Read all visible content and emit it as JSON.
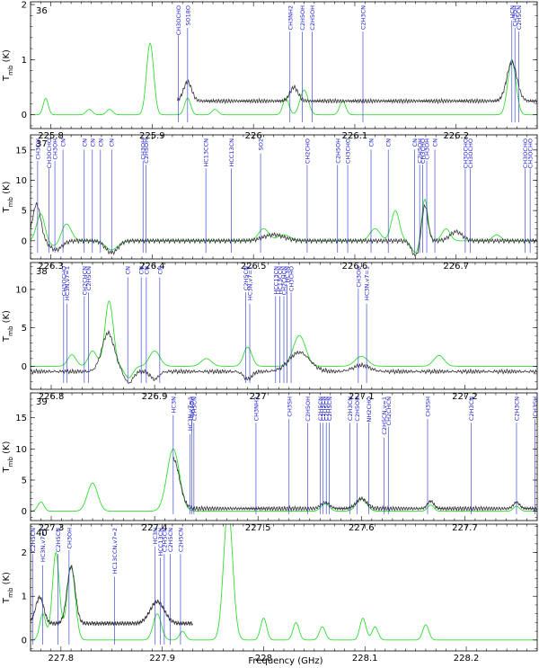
{
  "figure": {
    "xlabel": "Frequency (GHz)",
    "ylabel": "T_mb (K)"
  },
  "colors": {
    "observed": "#333333",
    "model": "#33dd33",
    "line_marker": "#2233cc"
  },
  "chart_data": [
    {
      "type": "line",
      "panel": "36",
      "xlim": [
        225.78,
        226.28
      ],
      "ylim": [
        -0.25,
        2.05
      ],
      "x_ticks": [
        225.8,
        225.9,
        226.0,
        226.1,
        226.2
      ],
      "x_tick_labels": [
        "225.8",
        "225.9",
        "226",
        "226.1",
        "226.2"
      ],
      "y_ticks": [
        0,
        1,
        2
      ],
      "y_tick_labels": [
        "0",
        "1",
        "2"
      ],
      "obs_range": [
        225.925,
        226.28
      ],
      "obs_base": 0.25,
      "obs_peaks": [
        [
          225.935,
          0.35,
          0.004
        ],
        [
          226.04,
          0.25,
          0.004
        ],
        [
          226.255,
          0.7,
          0.005
        ]
      ],
      "model_peaks": [
        [
          225.795,
          0.3,
          0.0025
        ],
        [
          225.838,
          0.1,
          0.003
        ],
        [
          225.858,
          0.1,
          0.003
        ],
        [
          225.898,
          1.3,
          0.0035
        ],
        [
          225.935,
          0.3,
          0.003
        ],
        [
          225.962,
          0.1,
          0.003
        ],
        [
          226.032,
          0.3,
          0.003
        ],
        [
          226.05,
          0.45,
          0.004
        ],
        [
          226.088,
          0.25,
          0.003
        ],
        [
          226.255,
          1.0,
          0.004
        ]
      ],
      "lines": [
        {
          "x": 225.926,
          "label": "CH3OCHO"
        },
        {
          "x": 225.935,
          "label": "SO18O"
        },
        {
          "x": 226.036,
          "label": "CH3NH2"
        },
        {
          "x": 226.048,
          "label": "C2H5OH"
        },
        {
          "x": 226.058,
          "label": "C2H5OH"
        },
        {
          "x": 226.108,
          "label": "C2H3CN"
        },
        {
          "x": 226.255,
          "label": "HCN"
        },
        {
          "x": 226.258,
          "label": "CH3OH"
        },
        {
          "x": 226.262,
          "label": "C2H5CN"
        }
      ]
    },
    {
      "type": "line",
      "panel": "37",
      "xlim": [
        226.28,
        226.78
      ],
      "ylim": [
        -3.0,
        17.5
      ],
      "x_ticks": [
        226.3,
        226.4,
        226.5,
        226.6,
        226.7
      ],
      "x_tick_labels": [
        "226.3",
        "226.4",
        "226.5",
        "226.6",
        "226.7"
      ],
      "y_ticks": [
        0,
        5,
        10,
        15
      ],
      "y_tick_labels": [
        "0",
        "5",
        "10",
        "15"
      ],
      "obs_range": [
        226.28,
        226.78
      ],
      "obs_base": 0.0,
      "obs_peaks": [
        [
          226.286,
          6.0,
          0.004
        ],
        [
          226.305,
          -1.5,
          0.006
        ],
        [
          226.36,
          -2.0,
          0.006
        ],
        [
          226.52,
          1.0,
          0.01
        ],
        [
          226.66,
          -2.5,
          0.004
        ],
        [
          226.669,
          6.0,
          0.003
        ],
        [
          226.7,
          1.5,
          0.006
        ]
      ],
      "model_peaks": [
        [
          226.29,
          4.5,
          0.004
        ],
        [
          226.305,
          -1.0,
          0.006
        ],
        [
          226.315,
          3.0,
          0.005
        ],
        [
          226.36,
          -1.5,
          0.006
        ],
        [
          226.51,
          2.0,
          0.005
        ],
        [
          226.53,
          1.0,
          0.006
        ],
        [
          226.62,
          2.0,
          0.005
        ],
        [
          226.64,
          5.0,
          0.004
        ],
        [
          226.66,
          -2.0,
          0.004
        ],
        [
          226.669,
          7.0,
          0.003
        ],
        [
          226.69,
          2.0,
          0.004
        ],
        [
          226.74,
          1.0,
          0.004
        ]
      ],
      "lines": [
        {
          "x": 226.287,
          "label": "CH3OH"
        },
        {
          "x": 226.298,
          "label": "CH3OCHO"
        },
        {
          "x": 226.304,
          "label": "CH3OH"
        },
        {
          "x": 226.312,
          "label": "CN"
        },
        {
          "x": 226.333,
          "label": "CN"
        },
        {
          "x": 226.341,
          "label": "CN"
        },
        {
          "x": 226.349,
          "label": "CN"
        },
        {
          "x": 226.36,
          "label": "CN"
        },
        {
          "x": 226.391,
          "label": "CH3OH"
        },
        {
          "x": 226.394,
          "label": "C2H5OH"
        },
        {
          "x": 226.453,
          "label": "HC13CCN"
        },
        {
          "x": 226.478,
          "label": "HCC13CN"
        },
        {
          "x": 226.507,
          "label": "SO2"
        },
        {
          "x": 226.553,
          "label": "CH2CHO"
        },
        {
          "x": 226.583,
          "label": "C2H5OH"
        },
        {
          "x": 226.593,
          "label": "CH3CHO"
        },
        {
          "x": 226.616,
          "label": "CN"
        },
        {
          "x": 226.633,
          "label": "CN"
        },
        {
          "x": 226.659,
          "label": "CN"
        },
        {
          "x": 226.664,
          "label": "C2H5OH"
        },
        {
          "x": 226.667,
          "label": "CH3CHO"
        },
        {
          "x": 226.671,
          "label": "CH3OH"
        },
        {
          "x": 226.679,
          "label": "CN"
        },
        {
          "x": 226.709,
          "label": "CH3OCHO"
        },
        {
          "x": 226.714,
          "label": "CH3OCHO"
        },
        {
          "x": 226.768,
          "label": "CH3OCHO"
        },
        {
          "x": 226.773,
          "label": "CH3OCHO"
        }
      ]
    },
    {
      "type": "line",
      "panel": "38",
      "xlim": [
        226.78,
        227.27
      ],
      "ylim": [
        -3.0,
        13.5
      ],
      "x_ticks": [
        226.8,
        226.9,
        227.0,
        227.1,
        227.2
      ],
      "x_tick_labels": [
        "226.8",
        "226.9",
        "227",
        "227.1",
        "227.2"
      ],
      "y_ticks": [
        0,
        5,
        10
      ],
      "y_tick_labels": [
        "0",
        "5",
        "10"
      ],
      "obs_range": [
        226.78,
        227.27
      ],
      "obs_base": -0.8,
      "obs_peaks": [
        [
          226.855,
          5.0,
          0.006
        ],
        [
          226.875,
          -1.5,
          0.004
        ],
        [
          226.9,
          -1.0,
          0.004
        ],
        [
          226.99,
          -1.0,
          0.004
        ],
        [
          227.04,
          2.5,
          0.01
        ],
        [
          227.1,
          0.8,
          0.008
        ]
      ],
      "model_peaks": [
        [
          226.82,
          1.5,
          0.004
        ],
        [
          226.84,
          2.0,
          0.004
        ],
        [
          226.856,
          8.5,
          0.004
        ],
        [
          226.875,
          -1.5,
          0.004
        ],
        [
          226.9,
          2.0,
          0.005
        ],
        [
          226.95,
          1.0,
          0.005
        ],
        [
          226.99,
          2.5,
          0.004
        ],
        [
          227.04,
          4.0,
          0.006
        ],
        [
          227.1,
          1.3,
          0.006
        ],
        [
          227.175,
          1.4,
          0.005
        ]
      ],
      "lines": [
        {
          "x": 226.812,
          "label": "CH3OCHO"
        },
        {
          "x": 226.815,
          "label": "HC3N,v7=1"
        },
        {
          "x": 226.832,
          "label": "CH2CHCN"
        },
        {
          "x": 226.836,
          "label": "C2H5CN"
        },
        {
          "x": 226.874,
          "label": "CN"
        },
        {
          "x": 226.887,
          "label": "CN"
        },
        {
          "x": 226.892,
          "label": "CN"
        },
        {
          "x": 226.905,
          "label": "CN"
        },
        {
          "x": 226.988,
          "label": "C2H5CN"
        },
        {
          "x": 226.992,
          "label": "HC3N,v7=1"
        },
        {
          "x": 227.017,
          "label": "HCC13CN"
        },
        {
          "x": 227.021,
          "label": "HC13CCN"
        },
        {
          "x": 227.025,
          "label": "CH2CHCN"
        },
        {
          "x": 227.028,
          "label": "HC3N"
        },
        {
          "x": 227.032,
          "label": "CH3CHO"
        },
        {
          "x": 227.097,
          "label": "CH3OH"
        },
        {
          "x": 227.105,
          "label": "HC3N,v7=1"
        }
      ]
    },
    {
      "type": "line",
      "panel": "39",
      "xlim": [
        227.28,
        227.77
      ],
      "ylim": [
        -1.5,
        19.0
      ],
      "x_ticks": [
        227.3,
        227.4,
        227.5,
        227.6,
        227.7
      ],
      "x_tick_labels": [
        "227.3",
        "227.4",
        "227.5",
        "227.6",
        "227.7"
      ],
      "y_ticks": [
        0,
        5,
        10,
        15
      ],
      "y_tick_labels": [
        "0",
        "5",
        "10",
        "15"
      ],
      "obs_range": [
        227.418,
        227.77
      ],
      "obs_base": 0.4,
      "obs_peaks": [
        [
          227.418,
          8.0,
          0.006
        ],
        [
          227.565,
          1.0,
          0.004
        ],
        [
          227.6,
          1.6,
          0.005
        ],
        [
          227.667,
          1.2,
          0.003
        ],
        [
          227.75,
          1.0,
          0.003
        ]
      ],
      "model_peaks": [
        [
          227.29,
          1.5,
          0.003
        ],
        [
          227.34,
          4.5,
          0.005
        ],
        [
          227.418,
          10.0,
          0.006
        ],
        [
          227.565,
          1.2,
          0.004
        ],
        [
          227.6,
          2.0,
          0.005
        ],
        [
          227.667,
          1.0,
          0.003
        ],
        [
          227.75,
          0.8,
          0.003
        ]
      ],
      "lines": [
        {
          "x": 227.418,
          "label": "HC3N"
        },
        {
          "x": 227.434,
          "label": "HC3N,v7=1"
        },
        {
          "x": 227.436,
          "label": "CH3OH"
        },
        {
          "x": 227.438,
          "label": "C2H5CN"
        },
        {
          "x": 227.498,
          "label": "CH3NH2"
        },
        {
          "x": 227.53,
          "label": "CH3SH"
        },
        {
          "x": 227.548,
          "label": "C2H5OH"
        },
        {
          "x": 227.56,
          "label": "C2H5CN"
        },
        {
          "x": 227.563,
          "label": "C2H5CN"
        },
        {
          "x": 227.566,
          "label": "C2H5CN"
        },
        {
          "x": 227.569,
          "label": "C2H5CN"
        },
        {
          "x": 227.589,
          "label": "C2H3CN"
        },
        {
          "x": 227.596,
          "label": "C2H5OH"
        },
        {
          "x": 227.607,
          "label": "NH2CHO"
        },
        {
          "x": 227.622,
          "label": "C2H5CN,v=1"
        },
        {
          "x": 227.626,
          "label": "CH2CHCN"
        },
        {
          "x": 227.664,
          "label": "CH3SH"
        },
        {
          "x": 227.706,
          "label": "C2H3CN"
        },
        {
          "x": 227.75,
          "label": "C2H3CN"
        },
        {
          "x": 227.768,
          "label": "CH3SH"
        }
      ]
    },
    {
      "type": "line",
      "panel": "40",
      "xlim": [
        227.77,
        228.27
      ],
      "ylim": [
        -0.25,
        2.65
      ],
      "x_ticks": [
        227.8,
        227.9,
        228.0,
        228.1,
        228.2
      ],
      "x_tick_labels": [
        "227.8",
        "227.9",
        "228",
        "228.1",
        "228.2"
      ],
      "y_ticks": [
        0,
        1,
        2
      ],
      "y_tick_labels": [
        "0",
        "1",
        "2"
      ],
      "obs_range": [
        227.77,
        227.93
      ],
      "obs_base": 0.3,
      "obs_peaks": [
        [
          227.779,
          0.6,
          0.004
        ],
        [
          227.81,
          1.3,
          0.004
        ],
        [
          227.895,
          0.5,
          0.007
        ]
      ],
      "model_peaks": [
        [
          227.782,
          0.6,
          0.003
        ],
        [
          227.795,
          2.0,
          0.0035
        ],
        [
          227.81,
          1.7,
          0.004
        ],
        [
          227.895,
          0.6,
          0.004
        ],
        [
          227.92,
          0.2,
          0.003
        ],
        [
          227.965,
          3.0,
          0.0045
        ],
        [
          228.0,
          0.5,
          0.003
        ],
        [
          228.032,
          0.4,
          0.003
        ],
        [
          228.058,
          0.3,
          0.003
        ],
        [
          228.098,
          0.5,
          0.003
        ],
        [
          228.11,
          0.3,
          0.003
        ],
        [
          228.16,
          0.35,
          0.003
        ]
      ],
      "lines": [
        {
          "x": 227.772,
          "label": "C2H5CN"
        },
        {
          "x": 227.782,
          "label": "HC3N,v7=1"
        },
        {
          "x": 227.797,
          "label": "C2H5CN"
        },
        {
          "x": 227.808,
          "label": "CH3OH"
        },
        {
          "x": 227.853,
          "label": "HC13CCN,v7=2"
        },
        {
          "x": 227.893,
          "label": "HC3N"
        },
        {
          "x": 227.898,
          "label": "HCC13CN"
        },
        {
          "x": 227.902,
          "label": "C2H5CN"
        },
        {
          "x": 227.908,
          "label": "C2H5CN"
        },
        {
          "x": 227.918,
          "label": "C2H5CN"
        }
      ]
    }
  ]
}
